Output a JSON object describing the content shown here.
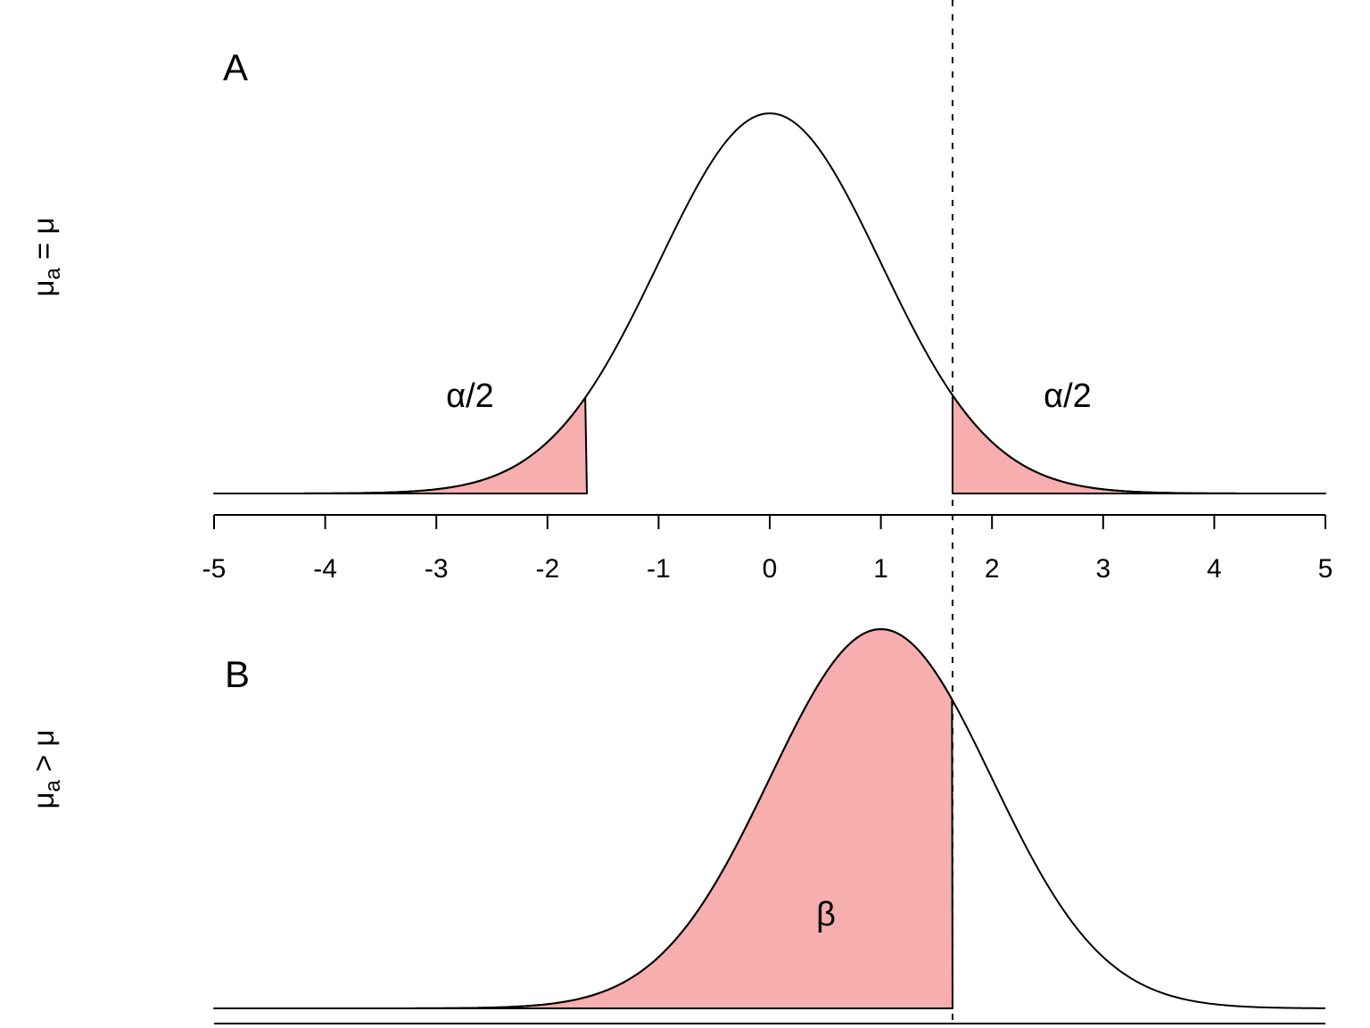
{
  "figure": {
    "description": "Two-panel normal distribution figure for a hypothesis test showing rejection regions (alpha/2) under the null and Type II error region (beta) under the alternative",
    "background": "#FFFFFF"
  },
  "labels": {
    "panelA": {
      "title": "A",
      "ylabel_base": "μ",
      "ylabel_sub": "a",
      "ylabel_tail": " = μ",
      "shade_left": "α/2",
      "shade_right": "α/2"
    },
    "panelB": {
      "title": "B",
      "ylabel_base": "μ",
      "ylabel_sub": "a",
      "ylabel_tail": " > μ",
      "shade": "β"
    },
    "x_axis_ticks": [
      "-5",
      "-4",
      "-3",
      "-2",
      "-1",
      "0",
      "1",
      "2",
      "3",
      "4",
      "5"
    ]
  },
  "colors": {
    "shade_fill": "#F6AEAE",
    "stroke": "#000000",
    "background": "#FFFFFF"
  },
  "chart_data": [
    {
      "type": "area",
      "panel_label": "A",
      "ylabel": "μ_a = μ",
      "curve": {
        "distribution": "normal",
        "mean": 0,
        "sd": 1,
        "peak_density": 0.3989
      },
      "x_range": [
        -5,
        5
      ],
      "x_ticks": [
        -5,
        -4,
        -3,
        -2,
        -1,
        0,
        1,
        2,
        3,
        4,
        5
      ],
      "critical_values": [
        -1.645,
        1.645
      ],
      "shaded_regions": [
        {
          "label": "α/2",
          "x_from": -5,
          "x_to": -1.645,
          "side": "left-tail"
        },
        {
          "label": "α/2",
          "x_from": 1.645,
          "x_to": 5,
          "side": "right-tail"
        }
      ],
      "grid": false,
      "legend": false
    },
    {
      "type": "area",
      "panel_label": "B",
      "ylabel": "μ_a > μ",
      "curve": {
        "distribution": "normal",
        "mean": 1,
        "sd": 1,
        "peak_density": 0.3989
      },
      "x_range": [
        -5,
        5
      ],
      "x_ticks_visible": false,
      "critical_values": [
        1.645
      ],
      "shaded_regions": [
        {
          "label": "β",
          "x_from": -5,
          "x_to": 1.645,
          "side": "left-of-critical-value"
        }
      ],
      "grid": false,
      "legend": false
    }
  ],
  "dashed_line": {
    "x": 1.645,
    "style": "dashed",
    "spans": "full figure height"
  }
}
